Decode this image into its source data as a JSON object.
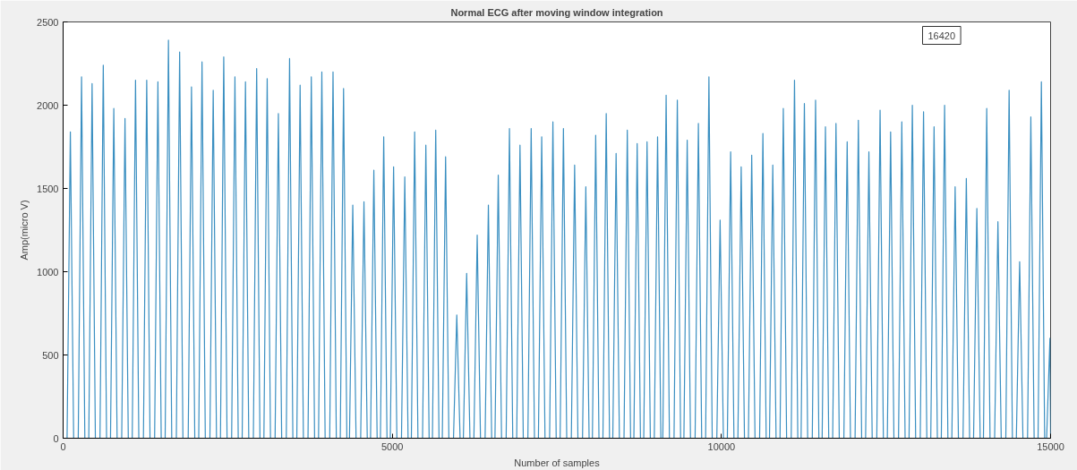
{
  "chart_data": {
    "type": "line",
    "title": "Normal ECG after moving window integration",
    "xlabel": "Number of samples",
    "ylabel": "Amp(micro V)",
    "annotations": [
      "16420"
    ],
    "xlim": [
      0,
      15000
    ],
    "xticks": [
      0,
      5000,
      10000,
      15000
    ],
    "ylim": [
      0,
      2500
    ],
    "yticks": [
      0,
      500,
      1000,
      1500,
      2000,
      2500
    ],
    "grid": false,
    "series": [
      {
        "color": "#3a8fc1",
        "x": [
          0,
          60,
          110,
          160,
          230,
          280,
          330,
          390,
          440,
          490,
          560,
          610,
          660,
          720,
          770,
          820,
          890,
          940,
          990,
          1050,
          1100,
          1150,
          1220,
          1270,
          1320,
          1390,
          1440,
          1490,
          1550,
          1600,
          1650,
          1720,
          1770,
          1820,
          1900,
          1950,
          2000,
          2060,
          2110,
          2160,
          2230,
          2280,
          2330,
          2390,
          2440,
          2490,
          2560,
          2610,
          2660,
          2720,
          2770,
          2820,
          2890,
          2940,
          2990,
          3050,
          3100,
          3150,
          3220,
          3270,
          3320,
          3390,
          3440,
          3490,
          3550,
          3600,
          3650,
          3720,
          3770,
          3820,
          3880,
          3930,
          3980,
          4050,
          4100,
          4150,
          4210,
          4260,
          4310,
          4350,
          4400,
          4450,
          4520,
          4570,
          4620,
          4670,
          4720,
          4770,
          4820,
          4870,
          4920,
          4970,
          5020,
          5070,
          5140,
          5190,
          5240,
          5290,
          5340,
          5390,
          5460,
          5510,
          5560,
          5610,
          5660,
          5710,
          5760,
          5810,
          5860,
          5930,
          5980,
          6030,
          6080,
          6130,
          6180,
          6240,
          6290,
          6340,
          6410,
          6460,
          6510,
          6560,
          6610,
          6660,
          6730,
          6780,
          6830,
          6890,
          6940,
          6990,
          7060,
          7110,
          7160,
          7220,
          7270,
          7320,
          7390,
          7440,
          7490,
          7550,
          7600,
          7650,
          7720,
          7770,
          7820,
          7890,
          7940,
          7990,
          8040,
          8090,
          8140,
          8200,
          8250,
          8300,
          8350,
          8400,
          8450,
          8520,
          8570,
          8620,
          8670,
          8720,
          8770,
          8820,
          8870,
          8920,
          8980,
          9030,
          9080,
          9110,
          9160,
          9210,
          9280,
          9330,
          9380,
          9430,
          9480,
          9530,
          9600,
          9650,
          9700,
          9760,
          9810,
          9860,
          9930,
          9980,
          10030,
          10090,
          10140,
          10190,
          10250,
          10300,
          10350,
          10410,
          10460,
          10510,
          10580,
          10630,
          10680,
          10730,
          10780,
          10830,
          10890,
          10940,
          10990,
          11060,
          11110,
          11160,
          11210,
          11260,
          11310,
          11380,
          11430,
          11480,
          11530,
          11580,
          11630,
          11690,
          11740,
          11790,
          11860,
          11910,
          11960,
          12030,
          12080,
          12130,
          12190,
          12240,
          12290,
          12360,
          12410,
          12460,
          12520,
          12570,
          12620,
          12690,
          12740,
          12790,
          12850,
          12900,
          12950,
          13020,
          13070,
          13120,
          13180,
          13230,
          13280,
          13340,
          13390,
          13440,
          13500,
          13550,
          13600,
          13670,
          13720,
          13770,
          13830,
          13880,
          13930,
          13980,
          14030,
          14080,
          14150,
          14200,
          14250,
          14320,
          14370,
          14420,
          14480,
          14530,
          14580,
          14650,
          14700,
          14750,
          14810,
          14860,
          14910,
          14940,
          14990,
          15000
        ],
        "values": [
          0,
          0,
          1840,
          0,
          0,
          2170,
          0,
          0,
          2130,
          0,
          0,
          2240,
          0,
          0,
          1980,
          0,
          0,
          1920,
          0,
          0,
          2150,
          0,
          0,
          2150,
          0,
          0,
          2140,
          0,
          0,
          2390,
          0,
          0,
          2320,
          0,
          0,
          2110,
          0,
          0,
          2260,
          0,
          0,
          2090,
          0,
          0,
          2290,
          0,
          0,
          2170,
          0,
          0,
          2140,
          0,
          0,
          2220,
          0,
          0,
          2160,
          0,
          0,
          1950,
          0,
          0,
          2280,
          0,
          0,
          2120,
          0,
          0,
          2170,
          0,
          0,
          2200,
          0,
          0,
          2200,
          0,
          0,
          2100,
          0,
          0,
          1400,
          0,
          0,
          1420,
          0,
          0,
          1610,
          0,
          0,
          1810,
          0,
          0,
          1630,
          0,
          0,
          1570,
          0,
          0,
          1840,
          0,
          0,
          1760,
          0,
          0,
          1850,
          0,
          0,
          1690,
          0,
          0,
          740,
          0,
          0,
          990,
          0,
          0,
          1220,
          0,
          0,
          1400,
          0,
          0,
          1580,
          0,
          0,
          1860,
          0,
          0,
          1760,
          0,
          0,
          1860,
          0,
          0,
          1810,
          0,
          0,
          1900,
          0,
          0,
          1860,
          0,
          0,
          1640,
          0,
          0,
          1510,
          0,
          0,
          1820,
          0,
          0,
          1950,
          0,
          0,
          1710,
          0,
          0,
          1850,
          0,
          0,
          1770,
          0,
          0,
          1780,
          0,
          0,
          1810,
          0,
          0,
          2060,
          0,
          0,
          2030,
          0,
          0,
          1790,
          0,
          0,
          1890,
          0,
          0,
          2170,
          0,
          0,
          1310,
          0,
          0,
          1720,
          0,
          0,
          1630,
          0,
          0,
          1700,
          0,
          0,
          1830,
          0,
          0,
          1640,
          0,
          0,
          1980,
          0,
          0,
          2150,
          0,
          0,
          2010,
          0,
          0,
          2030,
          0,
          0,
          1870,
          0,
          0,
          1890,
          0,
          0,
          1780,
          0,
          0,
          1910,
          0,
          0,
          1720,
          0,
          0,
          1970,
          0,
          0,
          1840,
          0,
          0,
          1900,
          0,
          0,
          2000,
          0,
          0,
          1960,
          0,
          0,
          1870,
          0,
          0,
          2000,
          0,
          0,
          1510,
          0,
          0,
          1560,
          0,
          0,
          1380,
          0,
          0,
          1980,
          0,
          0,
          1300,
          0,
          0,
          2090,
          0,
          0,
          1060,
          0,
          0,
          1930,
          0,
          0,
          2140,
          0,
          0,
          600,
          0
        ]
      }
    ]
  }
}
